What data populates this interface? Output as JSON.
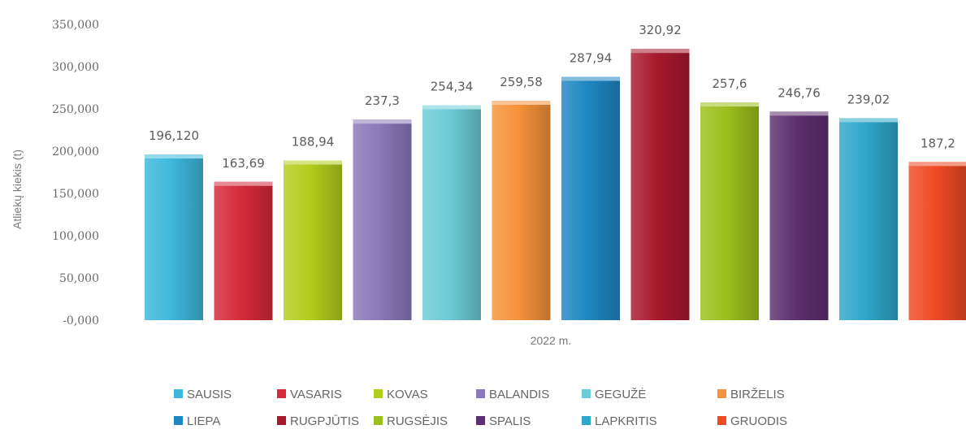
{
  "chart_data": {
    "type": "bar",
    "ylabel": "Atliekų kiekis (t)",
    "xlabel": "2022 m.",
    "ylim": [
      0,
      350000
    ],
    "y_ticks": [
      "350,000",
      "300,000",
      "250,000",
      "200,000",
      "150,000",
      "100,000",
      "50,000",
      "-0,000"
    ],
    "grid": false,
    "legend_position": "bottom",
    "series": [
      {
        "name": "SAUSIS",
        "value": 196120,
        "label": "196,120",
        "color": "#3db8dc"
      },
      {
        "name": "VASARIS",
        "value": 163690,
        "label": "163,69",
        "color": "#d62a3a"
      },
      {
        "name": "KOVAS",
        "value": 188940,
        "label": "188,94",
        "color": "#b3cd1c"
      },
      {
        "name": "BALANDIS",
        "value": 237300,
        "label": "237,3",
        "color": "#8a78b8"
      },
      {
        "name": "GEGUŽĖ",
        "value": 254340,
        "label": "254,34",
        "color": "#6cccd6"
      },
      {
        "name": "BIRŽELIS",
        "value": 259580,
        "label": "259,58",
        "color": "#f5923a"
      },
      {
        "name": "LIEPA",
        "value": 287940,
        "label": "287,94",
        "color": "#1f86c2"
      },
      {
        "name": "RUGPJŪTIS",
        "value": 320920,
        "label": "320,92",
        "color": "#a8182c"
      },
      {
        "name": "RUGSĖJIS",
        "value": 257600,
        "label": "257,6",
        "color": "#9bbf1c"
      },
      {
        "name": "SPALIS",
        "value": 246760,
        "label": "246,76",
        "color": "#5d2f6e"
      },
      {
        "name": "LAPKRITIS",
        "value": 239020,
        "label": "239,02",
        "color": "#2ea7c9"
      },
      {
        "name": "GRUODIS",
        "value": 187200,
        "label": "187,2",
        "color": "#ef4a24"
      }
    ]
  }
}
